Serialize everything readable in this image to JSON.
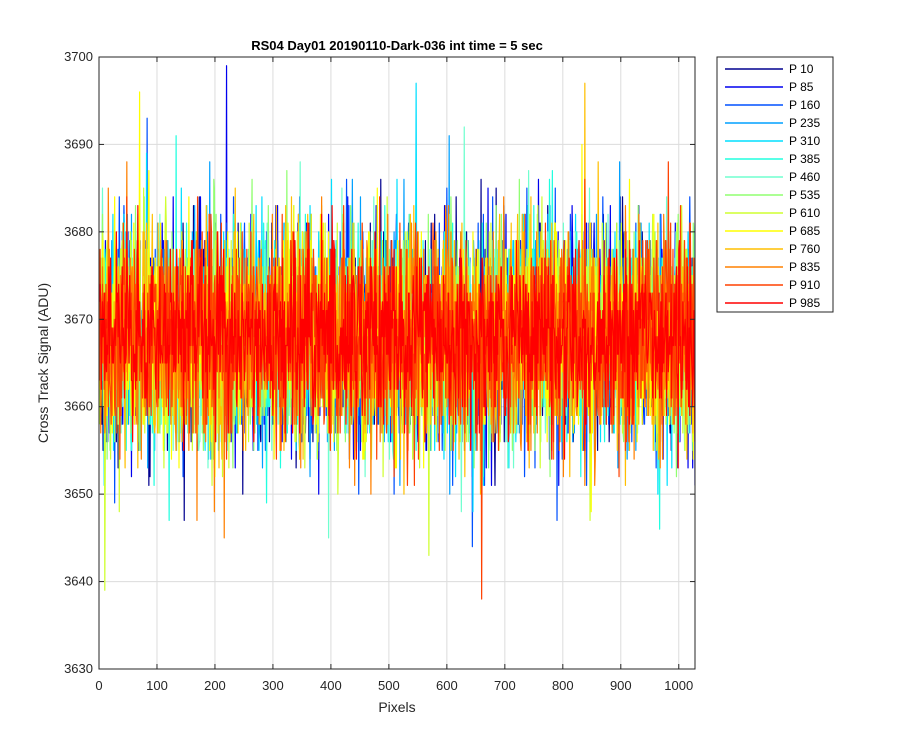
{
  "chart_data": {
    "type": "line",
    "title": "RS04 Day01 20190110-Dark-036 int time = 5 sec",
    "xlabel": "Pixels",
    "ylabel": "Cross Track Signal (ADU)",
    "xlim": [
      0,
      1028
    ],
    "ylim": [
      3630,
      3700
    ],
    "xticks": [
      0,
      100,
      200,
      300,
      400,
      500,
      600,
      700,
      800,
      900,
      1000
    ],
    "yticks": [
      3630,
      3640,
      3650,
      3660,
      3670,
      3680,
      3690,
      3700
    ],
    "grid": true,
    "legend_position": "outside-top-right",
    "x_range": [
      1,
      1028
    ],
    "series": [
      {
        "name": "P 10",
        "color": "#00008f",
        "mean": 3668,
        "std": 6.0
      },
      {
        "name": "P 85",
        "color": "#0000ef",
        "mean": 3668,
        "std": 6.0
      },
      {
        "name": "P 160",
        "color": "#0050ff",
        "mean": 3668,
        "std": 6.0
      },
      {
        "name": "P 235",
        "color": "#00a0ff",
        "mean": 3668,
        "std": 6.0
      },
      {
        "name": "P 310",
        "color": "#00dfff",
        "mean": 3668,
        "std": 6.0
      },
      {
        "name": "P 385",
        "color": "#20ffdf",
        "mean": 3668,
        "std": 6.0
      },
      {
        "name": "P 460",
        "color": "#70ffcf",
        "mean": 3668,
        "std": 6.0
      },
      {
        "name": "P 535",
        "color": "#90ff70",
        "mean": 3668,
        "std": 6.0
      },
      {
        "name": "P 610",
        "color": "#cfff30",
        "mean": 3668,
        "std": 6.0
      },
      {
        "name": "P 685",
        "color": "#ffff00",
        "mean": 3668,
        "std": 6.0
      },
      {
        "name": "P 760",
        "color": "#ffbf00",
        "mean": 3668,
        "std": 6.0
      },
      {
        "name": "P 835",
        "color": "#ff8000",
        "mean": 3668,
        "std": 6.0
      },
      {
        "name": "P 910",
        "color": "#ff4000",
        "mean": 3668,
        "std": 6.0
      },
      {
        "name": "P 985",
        "color": "#ff0000",
        "mean": 3668,
        "std": 5.0
      }
    ],
    "notable_points": [
      {
        "series": "P 85",
        "x": 220,
        "y": 3699
      },
      {
        "series": "P 685",
        "x": 70,
        "y": 3696
      },
      {
        "series": "P 760",
        "x": 838,
        "y": 3697
      },
      {
        "series": "P 310",
        "x": 547,
        "y": 3697
      },
      {
        "series": "P 910",
        "x": 660,
        "y": 3638
      },
      {
        "series": "P 610",
        "x": 10,
        "y": 3639
      }
    ]
  }
}
